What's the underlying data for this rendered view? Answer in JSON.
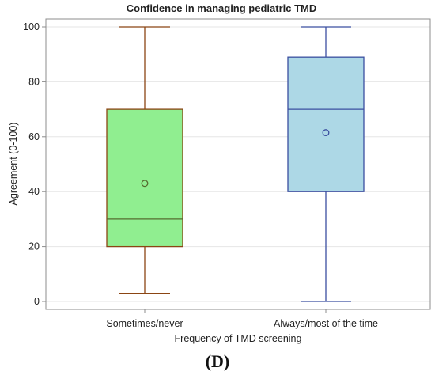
{
  "chart_data": {
    "type": "boxplot",
    "title": "Confidence in managing pediatric TMD",
    "xlabel": "Frequency of TMD screening",
    "ylabel": "Agreement (0-100)",
    "ylim": [
      0,
      100
    ],
    "yticks": [
      0,
      20,
      40,
      60,
      80,
      100
    ],
    "grid": "horizontal",
    "groups": [
      {
        "name": "Sometimes/never",
        "min": 3,
        "q1": 20,
        "median": 30,
        "q3": 70,
        "max": 100,
        "mean": 43,
        "fill": "#90ee90",
        "line": "#8b4513",
        "median_line": "#556b2f"
      },
      {
        "name": "Always/most of the time",
        "min": 0,
        "q1": 40,
        "median": 70,
        "q3": 89,
        "max": 100,
        "mean": 61.5,
        "fill": "#add8e6",
        "line": "#3b4fa0",
        "median_line": "#3b4fa0"
      }
    ]
  },
  "panel_label": "(D)"
}
